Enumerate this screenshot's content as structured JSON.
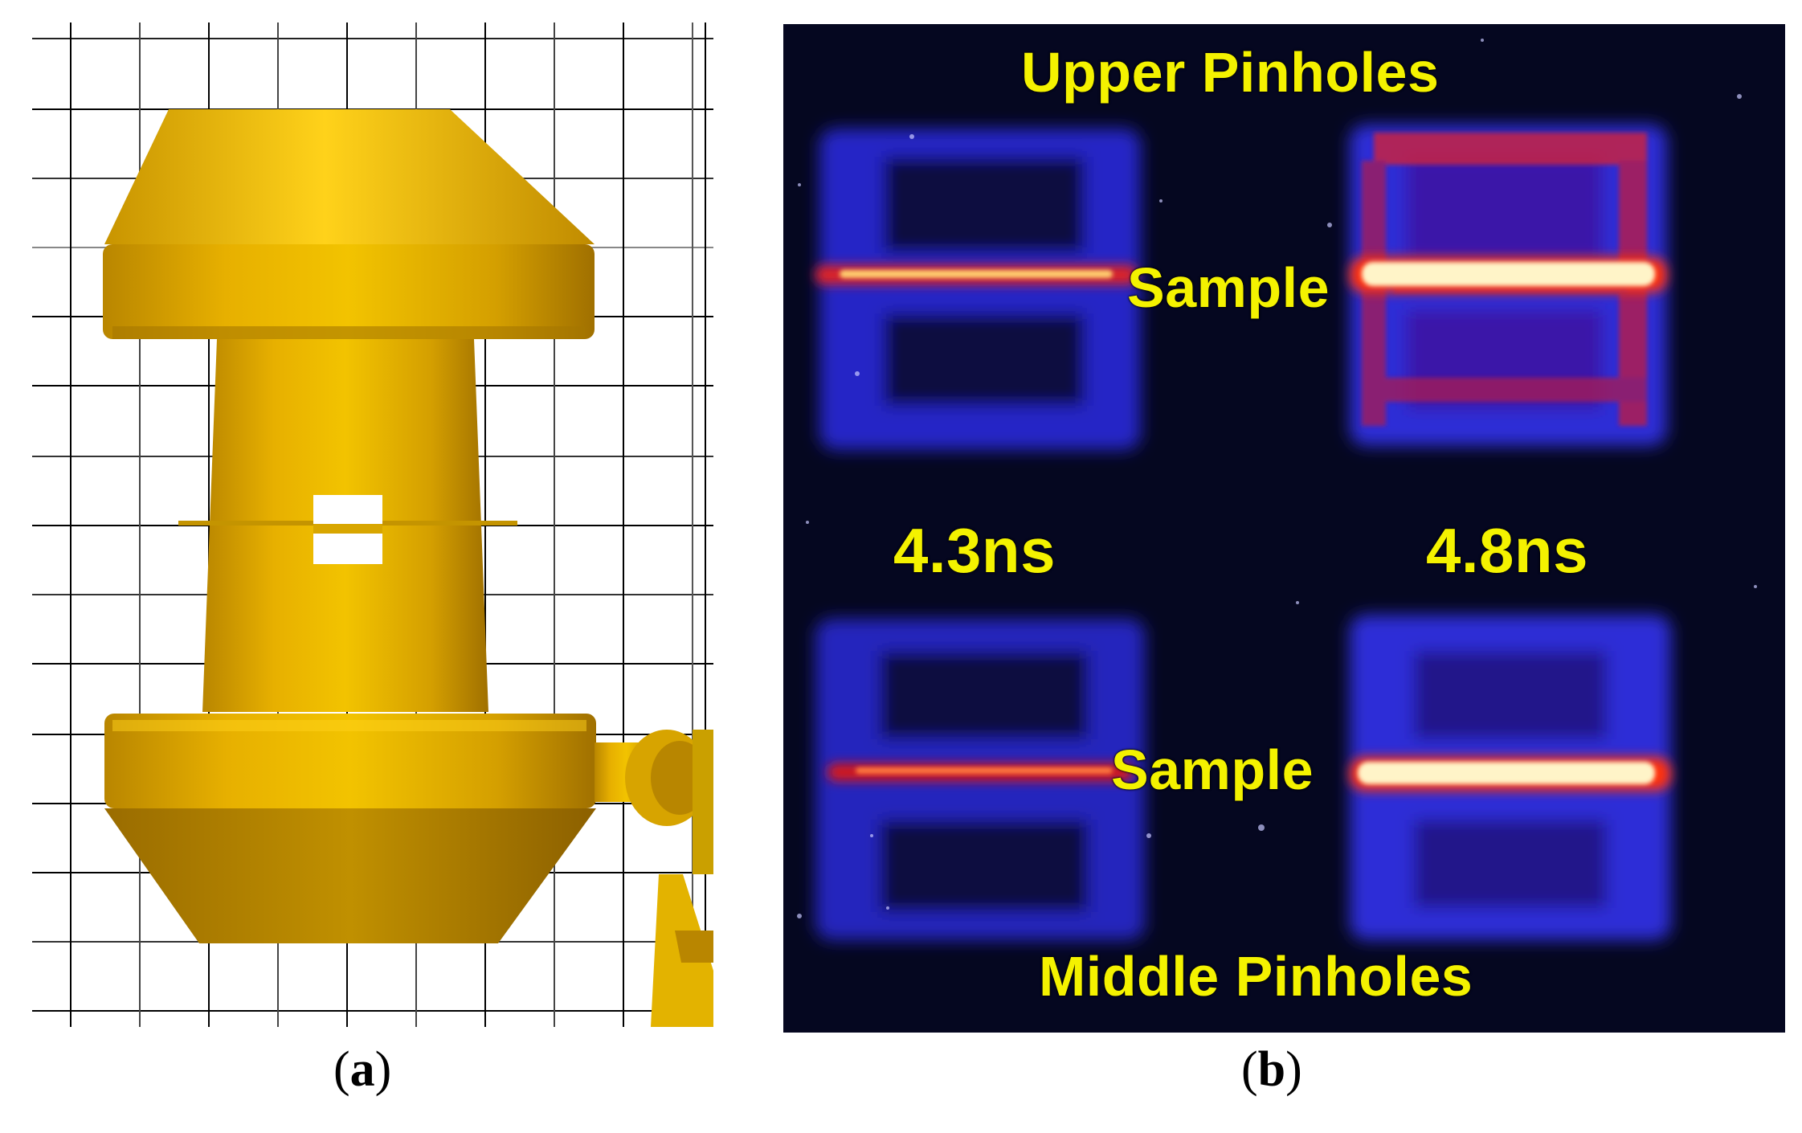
{
  "panel_a": {
    "caption_letter": "a"
  },
  "panel_b": {
    "caption_letter": "b",
    "labels": {
      "upper_pinholes": "Upper Pinholes",
      "middle_pinholes": "Middle Pinholes",
      "sample_upper": "Sample",
      "sample_lower": "Sample",
      "time_left": "4.3ns",
      "time_right": "4.8ns"
    }
  },
  "colors": {
    "gold": "#e8b000",
    "label_yellow": "#f4f200",
    "image_background": "#050720",
    "pinhole_blue": "#2a2ad8"
  }
}
